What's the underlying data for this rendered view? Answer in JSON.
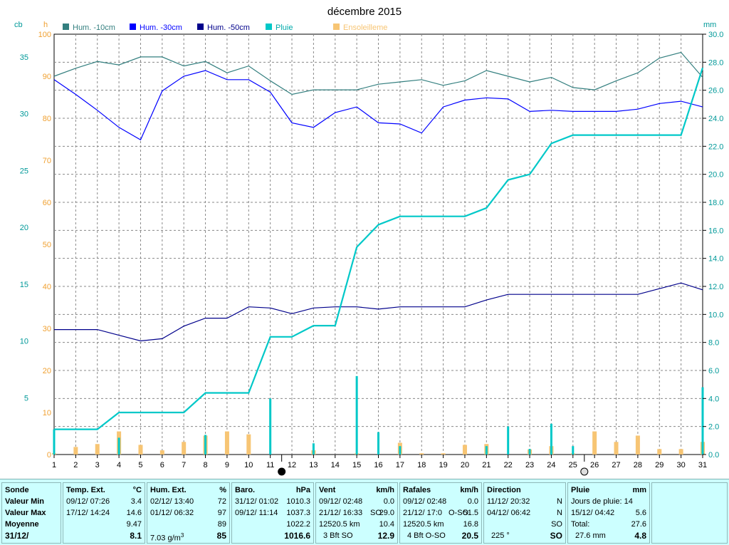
{
  "chart_data": {
    "type": "line",
    "title": "décembre 2015",
    "left_axes": [
      {
        "unit": "cb",
        "ticks": [
          5,
          10,
          15,
          20,
          25,
          30,
          35
        ],
        "ylim": [
          0,
          37
        ]
      },
      {
        "unit": "h",
        "ticks": [
          0,
          10,
          20,
          30,
          40,
          50,
          60,
          70,
          80,
          90,
          100
        ],
        "ylim": [
          0,
          100
        ]
      }
    ],
    "right_axis": {
      "unit": "mm",
      "ticks": [
        "0.0",
        "2.0",
        "4.0",
        "6.0",
        "8.0",
        "10.0",
        "12.0",
        "14.0",
        "16.0",
        "18.0",
        "20.0",
        "22.0",
        "24.0",
        "26.0",
        "28.0",
        "30.0"
      ],
      "ylim": [
        0,
        30
      ]
    },
    "x": [
      1,
      2,
      3,
      4,
      5,
      6,
      7,
      8,
      9,
      10,
      11,
      12,
      13,
      14,
      15,
      16,
      17,
      18,
      19,
      20,
      21,
      22,
      23,
      24,
      25,
      26,
      27,
      28,
      29,
      30,
      31
    ],
    "grid": true,
    "legend_position": "top",
    "series": [
      {
        "name": "Hum. -10cm",
        "axis": "cb",
        "color": "#337f7f",
        "values": [
          33.3,
          34.0,
          34.6,
          34.3,
          35.0,
          35.0,
          34.2,
          34.6,
          33.6,
          34.2,
          32.9,
          31.7,
          32.1,
          32.1,
          32.1,
          32.6,
          32.8,
          33.0,
          32.5,
          32.9,
          33.8,
          33.3,
          32.8,
          33.2,
          32.3,
          32.1,
          32.9,
          33.6,
          34.9,
          35.4,
          33.2
        ]
      },
      {
        "name": "Hum. -30cm",
        "axis": "cb",
        "color": "#0000ff",
        "values": [
          33.0,
          31.7,
          30.3,
          28.8,
          27.7,
          32.0,
          33.3,
          33.8,
          33.0,
          33.0,
          31.9,
          29.2,
          28.8,
          30.1,
          30.6,
          29.2,
          29.1,
          28.3,
          30.6,
          31.2,
          31.4,
          31.3,
          30.2,
          30.3,
          30.2,
          30.2,
          30.2,
          30.4,
          30.9,
          31.1,
          30.6
        ]
      },
      {
        "name": "Hum. -50cm",
        "axis": "cb",
        "color": "#00008b",
        "values": [
          11.0,
          11.0,
          11.0,
          10.5,
          10.0,
          10.2,
          11.3,
          12.0,
          12.0,
          13.0,
          12.9,
          12.4,
          12.9,
          13.0,
          13.0,
          12.8,
          13.0,
          13.0,
          13.0,
          13.0,
          13.6,
          14.1,
          14.1,
          14.1,
          14.1,
          14.1,
          14.1,
          14.1,
          14.6,
          15.1,
          14.5
        ]
      },
      {
        "name": "Pluie",
        "axis": "mm",
        "color": "#00c8c8",
        "type": "step",
        "values": [
          1.8,
          1.8,
          1.8,
          3.0,
          3.0,
          3.0,
          3.0,
          4.4,
          4.4,
          4.4,
          8.4,
          8.4,
          9.2,
          9.2,
          14.8,
          16.4,
          17.0,
          17.0,
          17.0,
          17.0,
          17.6,
          19.6,
          20.0,
          22.2,
          22.8,
          22.8,
          22.8,
          22.8,
          22.8,
          22.8,
          27.6
        ],
        "daily": [
          1.8,
          0,
          0,
          1.2,
          0,
          0,
          0,
          1.4,
          0,
          0,
          4.0,
          0,
          0.8,
          0,
          5.6,
          1.6,
          0.6,
          0,
          0,
          0,
          0.6,
          2.0,
          0.4,
          2.2,
          0.6,
          0,
          0,
          0,
          0,
          0,
          4.8
        ]
      },
      {
        "name": "Ensoleilleme",
        "axis": "h",
        "color": "#f7c574",
        "type": "bar",
        "values": [
          0.3,
          1.8,
          2.5,
          5.5,
          2.3,
          1.0,
          3.0,
          4.5,
          5.5,
          4.8,
          0,
          0,
          1.0,
          0,
          0.3,
          0,
          2.8,
          0.3,
          0.3,
          2.3,
          2.5,
          0,
          1.2,
          2.0,
          0.3,
          5.5,
          3.0,
          4.5,
          1.3,
          1.3,
          3.0
        ]
      }
    ],
    "moon_markers": [
      {
        "after_day": 11,
        "phase": "new"
      },
      {
        "after_day": 25,
        "phase": "full"
      }
    ]
  },
  "labels": {
    "title": "décembre 2015",
    "unit_cb": "cb",
    "unit_h": "h",
    "unit_mm": "mm",
    "legend": [
      "Hum. -10cm",
      "Hum. -30cm",
      "Hum. -50cm",
      "Pluie",
      "Ensoleilleme"
    ]
  },
  "table": {
    "row_labels": {
      "l1": "Sonde",
      "l2": "Valeur Min",
      "l3": "Valeur Max",
      "l4": "Moyenne",
      "l5": "31/12/"
    },
    "temp": {
      "h1": "Temp. Ext.",
      "h2": "°C",
      "min_date": "09/12/  07:26",
      "min_val": "3.4",
      "max_date": "17/12/  14:24",
      "max_val": "14.6",
      "avg": "9.47",
      "cur": "8.1"
    },
    "hum": {
      "h1": "Hum. Ext.",
      "h2": "%",
      "min_date": "02/12/  13:40",
      "min_val": "72",
      "max_date": "01/12/  06:32",
      "max_val": "97",
      "avg": "89",
      "abs_a": "7.03 g/m",
      "abs_b": "3",
      "cur": "85"
    },
    "baro": {
      "h1": "Baro.",
      "h2": "hPa",
      "min_date": "31/12/  01:02",
      "min_val": "1010.3",
      "max_date": "09/12/  11:14",
      "max_val": "1037.3",
      "avg": "1022.2",
      "cur": "1016.6"
    },
    "vent": {
      "h1": "Vent",
      "h2": "km/h",
      "min_date": "09/12/  02:48",
      "min_val": "0.0",
      "max_date": "21/12/  16:33",
      "max_dir": "SO",
      "max_val": "29.0",
      "dist": "12520.5 km",
      "avg": "10.4",
      "bft": "3 Bft SO",
      "cur": "12.9"
    },
    "rafales": {
      "h1": "Rafales",
      "h2": "km/h",
      "min_date": "09/12/  02:48",
      "min_val": "0.0",
      "max_date": "21/12/  17:0",
      "max_dir": "O-SO",
      "max_val": "51.5",
      "dist": "12520.5 km",
      "avg": "16.8",
      "bft": "4 Bft O-SO",
      "cur": "20.5"
    },
    "direction": {
      "h1": "Direction",
      "min_date": "11/12/  20:32",
      "min_val": "N",
      "max_date": "04/12/  06:42",
      "max_val": "N",
      "avg": "SO",
      "deg": "225 °",
      "cur": "SO"
    },
    "pluie": {
      "h1": "Pluie",
      "h2": "mm",
      "days": "Jours de pluie: 14",
      "max_date": "15/12/  04:42",
      "max_val": "5.6",
      "total_label": "Total:",
      "total": "27.6",
      "total2": "27.6 mm",
      "cur": "4.8"
    }
  }
}
